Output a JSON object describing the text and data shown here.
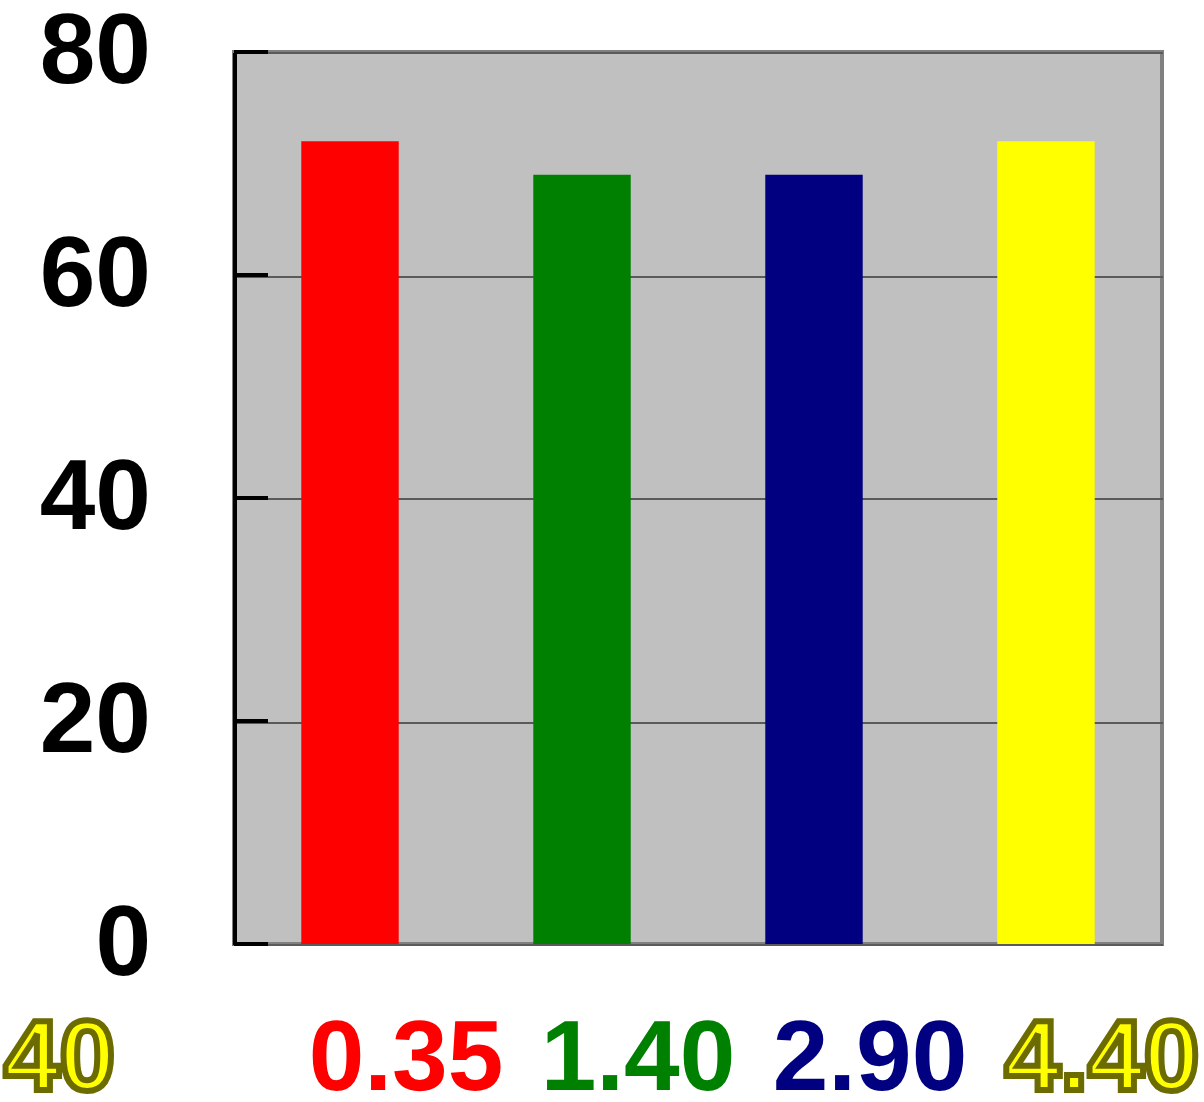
{
  "chart_data": {
    "type": "bar",
    "categories": [
      "0.35",
      "1.40",
      "2.90",
      "4.40"
    ],
    "values": [
      72,
      69,
      69,
      72
    ],
    "colors": [
      "#ff0000",
      "#008000",
      "#000080",
      "#ffff00"
    ],
    "ylim": [
      0,
      80
    ],
    "yticks": [
      0,
      20,
      40,
      60,
      80
    ],
    "grid": "y",
    "annotations": [
      "40"
    ]
  }
}
